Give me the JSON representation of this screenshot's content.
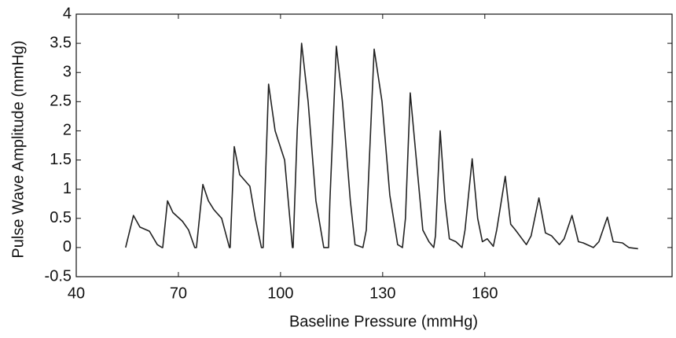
{
  "chart_data": {
    "type": "line",
    "x_label": "Baseline Pressure (mmHg)",
    "y_label": "Pulse Wave Amplitude (mmHg)",
    "x": [
      54.5,
      56.8,
      58.7,
      61.5,
      63.8,
      65.2,
      65.4,
      66.8,
      68.4,
      71.2,
      73.0,
      74.8,
      75.3,
      77.2,
      78.8,
      80.4,
      82.7,
      85.0,
      85.2,
      86.4,
      88.0,
      91.0,
      92.6,
      94.4,
      94.9,
      96.5,
      98.4,
      101.2,
      103.5,
      103.7,
      104.9,
      106.2,
      108.1,
      110.4,
      112.7,
      114.1,
      114.5,
      116.4,
      118.2,
      120.5,
      121.9,
      124.2,
      125.2,
      127.5,
      129.8,
      132.1,
      134.4,
      135.8,
      136.7,
      138.1,
      139.9,
      141.8,
      143.6,
      145.0,
      145.5,
      146.9,
      148.3,
      149.6,
      151.5,
      153.3,
      154.2,
      156.3,
      157.9,
      159.3,
      160.7,
      162.5,
      163.5,
      166.0,
      167.6,
      169.0,
      172.2,
      173.6,
      175.9,
      177.8,
      179.6,
      181.9,
      183.3,
      185.6,
      187.5,
      188.9,
      191.9,
      193.5,
      196.0,
      197.7,
      200.4,
      202.3,
      205.0
    ],
    "values": [
      0,
      0.55,
      0.35,
      0.28,
      0.05,
      0,
      0,
      0.8,
      0.6,
      0.45,
      0.3,
      0,
      0,
      1.08,
      0.8,
      0.65,
      0.5,
      0,
      0,
      1.73,
      1.25,
      1.05,
      0.5,
      0,
      0,
      2.8,
      2.0,
      1.5,
      0,
      0,
      2.0,
      3.5,
      2.5,
      0.8,
      0,
      0,
      0.8,
      3.45,
      2.5,
      0.8,
      0.05,
      0,
      0.3,
      3.4,
      2.5,
      0.9,
      0.05,
      0,
      0.5,
      2.65,
      1.5,
      0.3,
      0.1,
      0,
      0.2,
      2.0,
      0.8,
      0.15,
      0.1,
      0,
      0.3,
      1.52,
      0.5,
      0.1,
      0.15,
      0.02,
      0.3,
      1.22,
      0.4,
      0.3,
      0.05,
      0.2,
      0.85,
      0.25,
      0.2,
      0.05,
      0.15,
      0.55,
      0.1,
      0.08,
      0,
      0.1,
      0.52,
      0.1,
      0.08,
      0,
      -0.02
    ],
    "color": "#222222",
    "xlim": [
      40,
      215
    ],
    "xticks": [
      40,
      70,
      100,
      130,
      160
    ],
    "ylim": [
      -0.5,
      4
    ],
    "yticks": [
      -0.5,
      0,
      0.5,
      1,
      1.5,
      2,
      2.5,
      3,
      3.5,
      4
    ],
    "grid": false
  }
}
